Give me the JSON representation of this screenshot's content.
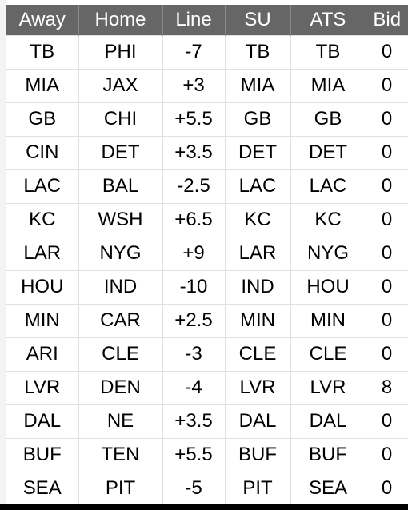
{
  "columns": [
    "Away",
    "Home",
    "Line",
    "SU",
    "ATS",
    "Bid"
  ],
  "rows": [
    [
      "TB",
      "PHI",
      "-7",
      "TB",
      "TB",
      "0"
    ],
    [
      "MIA",
      "JAX",
      "+3",
      "MIA",
      "MIA",
      "0"
    ],
    [
      "GB",
      "CHI",
      "+5.5",
      "GB",
      "GB",
      "0"
    ],
    [
      "CIN",
      "DET",
      "+3.5",
      "DET",
      "DET",
      "0"
    ],
    [
      "LAC",
      "BAL",
      "-2.5",
      "LAC",
      "LAC",
      "0"
    ],
    [
      "KC",
      "WSH",
      "+6.5",
      "KC",
      "KC",
      "0"
    ],
    [
      "LAR",
      "NYG",
      "+9",
      "LAR",
      "NYG",
      "0"
    ],
    [
      "HOU",
      "IND",
      "-10",
      "IND",
      "HOU",
      "0"
    ],
    [
      "MIN",
      "CAR",
      "+2.5",
      "MIN",
      "MIN",
      "0"
    ],
    [
      "ARI",
      "CLE",
      "-3",
      "CLE",
      "CLE",
      "0"
    ],
    [
      "LVR",
      "DEN",
      "-4",
      "LVR",
      "LVR",
      "8"
    ],
    [
      "DAL",
      "NE",
      "+3.5",
      "DAL",
      "DAL",
      "0"
    ],
    [
      "BUF",
      "TEN",
      "+5.5",
      "BUF",
      "BUF",
      "0"
    ],
    [
      "SEA",
      "PIT",
      "-5",
      "PIT",
      "SEA",
      "0"
    ]
  ],
  "colors": {
    "header_bg": "#666666",
    "header_text": "#ffffff",
    "cell_border": "#e0e0e0"
  }
}
